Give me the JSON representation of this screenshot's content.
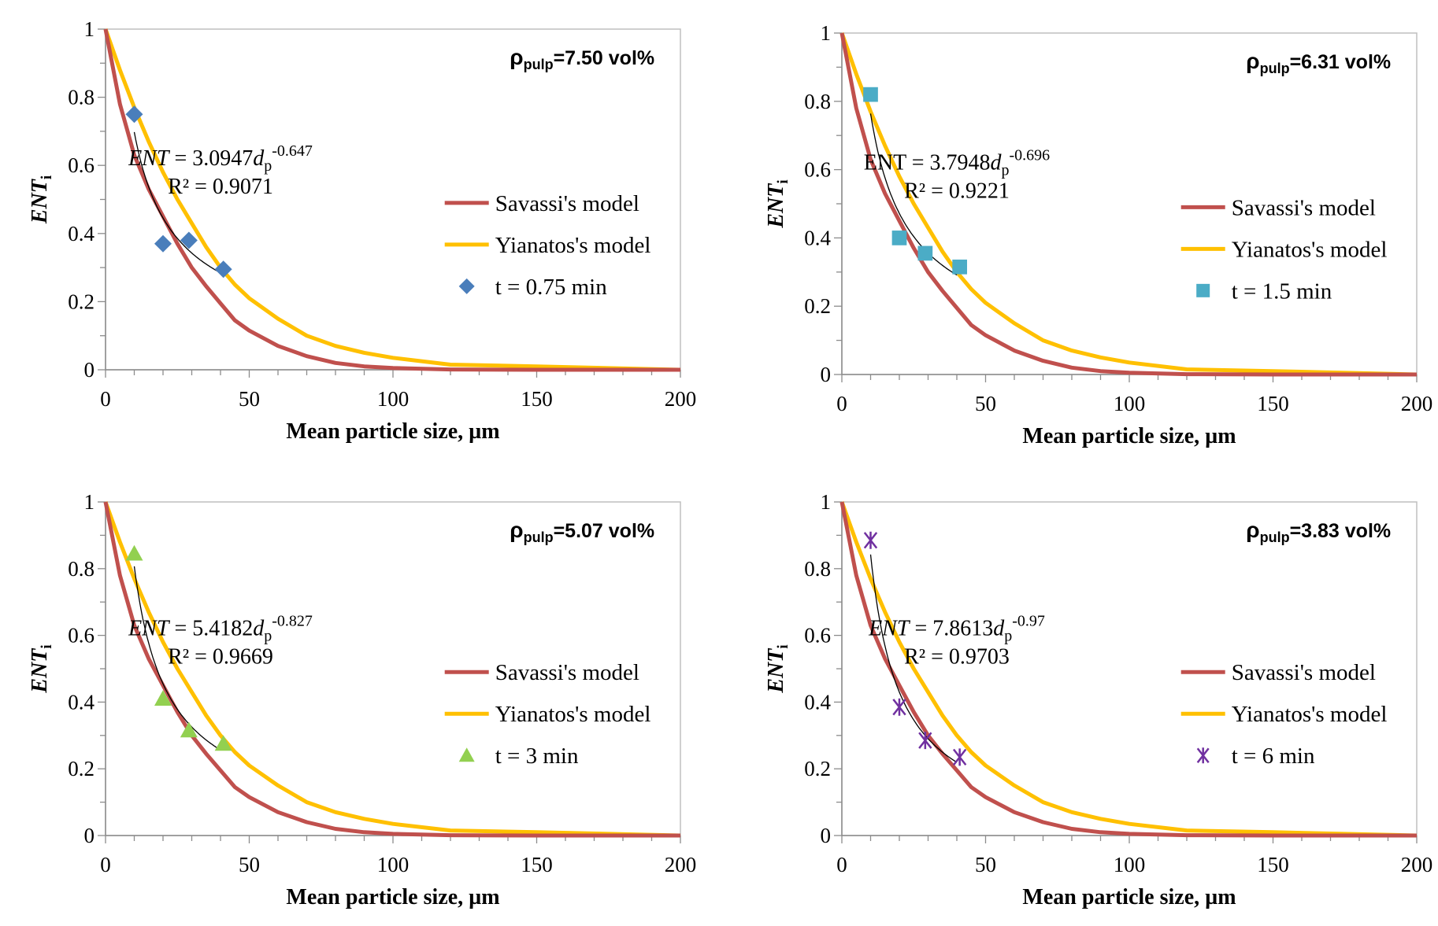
{
  "chart_data": [
    {
      "type": "scatter",
      "annotation": {
        "symbol": "ρ",
        "sub": "pulp",
        "text": "=7.50 vol%"
      },
      "xlabel": "Mean particle size, µm",
      "ylabel": {
        "main": "ENT",
        "sub": "i"
      },
      "xlim": [
        0,
        200
      ],
      "ylim": [
        0,
        1
      ],
      "xticks": [
        "0",
        "50",
        "100",
        "150",
        "200"
      ],
      "yticks": [
        "0",
        "0.2",
        "0.4",
        "0.6",
        "0.8",
        "1"
      ],
      "equation": {
        "lhs": "ENT",
        "mid": " = 3.0947",
        "var": "d",
        "sub": "p",
        "exp": "-0.647",
        "r2": "R² = 0.9071",
        "a": 3.0947,
        "b": -0.647
      },
      "legend": [
        "Savassi's model",
        "Yianatos's model",
        "t = 0.75 min"
      ],
      "marker": "diamond",
      "marker_color": "#4a7ebb",
      "points": {
        "x": [
          10,
          20,
          29,
          41
        ],
        "y": [
          0.75,
          0.37,
          0.38,
          0.295
        ]
      }
    },
    {
      "type": "scatter",
      "annotation": {
        "symbol": "ρ",
        "sub": "pulp",
        "text": "=6.31 vol%"
      },
      "xlabel": "Mean particle size, µm",
      "ylabel": {
        "main": "ENT",
        "sub": "i"
      },
      "xlim": [
        0,
        200
      ],
      "ylim": [
        0,
        1
      ],
      "xticks": [
        "0",
        "50",
        "100",
        "150",
        "200"
      ],
      "yticks": [
        "0",
        "0.2",
        "0.4",
        "0.6",
        "0.8",
        "1"
      ],
      "equation": {
        "lhs": "ENT",
        "mid": " = 3.7948",
        "var": "d",
        "sub": "p",
        "exp": "-0.696",
        "r2": "R² = 0.9221",
        "a": 3.7948,
        "b": -0.696,
        "upright": true
      },
      "legend": [
        "Savassi's model",
        "Yianatos's model",
        "t = 1.5 min"
      ],
      "marker": "square",
      "marker_color": "#4bacc6",
      "points": {
        "x": [
          10,
          20,
          29,
          41
        ],
        "y": [
          0.82,
          0.4,
          0.355,
          0.315
        ]
      }
    },
    {
      "type": "scatter",
      "annotation": {
        "symbol": "ρ",
        "sub": "pulp",
        "text": "=5.07 vol%"
      },
      "xlabel": "Mean particle size, µm",
      "ylabel": {
        "main": "ENT",
        "sub": "i"
      },
      "xlim": [
        0,
        200
      ],
      "ylim": [
        0,
        1
      ],
      "xticks": [
        "0",
        "50",
        "100",
        "150",
        "200"
      ],
      "yticks": [
        "0",
        "0.2",
        "0.4",
        "0.6",
        "0.8",
        "1"
      ],
      "equation": {
        "lhs": "ENT",
        "mid": " = 5.4182",
        "var": "d",
        "sub": "p",
        "exp": "-0.827",
        "r2": "R² = 0.9669",
        "a": 5.4182,
        "b": -0.827
      },
      "legend": [
        "Savassi's model",
        "Yianatos's model",
        "t = 3 min"
      ],
      "marker": "triangle",
      "marker_color": "#92d050",
      "points": {
        "x": [
          10,
          20,
          29,
          41
        ],
        "y": [
          0.845,
          0.41,
          0.315,
          0.275
        ]
      }
    },
    {
      "type": "scatter",
      "annotation": {
        "symbol": "ρ",
        "sub": "pulp",
        "text": "=3.83 vol%"
      },
      "xlabel": "Mean particle size, µm",
      "ylabel": {
        "main": "ENT",
        "sub": "i"
      },
      "xlim": [
        0,
        200
      ],
      "ylim": [
        0,
        1
      ],
      "xticks": [
        "0",
        "50",
        "100",
        "150",
        "200"
      ],
      "yticks": [
        "0",
        "0.2",
        "0.4",
        "0.6",
        "0.8",
        "1"
      ],
      "equation": {
        "lhs": "ENT",
        "mid": " = 7.8613",
        "var": "d",
        "sub": "p",
        "exp": "-0.97",
        "r2": "R² = 0.9703",
        "a": 7.8613,
        "b": -0.97
      },
      "legend": [
        "Savassi's model",
        "Yianatos's model",
        "t = 6 min"
      ],
      "marker": "asterisk",
      "marker_color": "#7030a0",
      "points": {
        "x": [
          10,
          20,
          29,
          41
        ],
        "y": [
          0.885,
          0.385,
          0.285,
          0.235
        ]
      }
    }
  ],
  "models": {
    "savassi": {
      "color": "#c0504d",
      "x": [
        0,
        5,
        10,
        15,
        20,
        25,
        30,
        35,
        40,
        45,
        50,
        60,
        70,
        80,
        90,
        100,
        120,
        150,
        200
      ],
      "y": [
        1,
        0.78,
        0.63,
        0.53,
        0.45,
        0.37,
        0.3,
        0.245,
        0.195,
        0.145,
        0.115,
        0.07,
        0.04,
        0.02,
        0.01,
        0.005,
        0.001,
        0,
        0
      ]
    },
    "yianatos": {
      "color": "#ffc000",
      "x": [
        0,
        5,
        10,
        15,
        20,
        25,
        30,
        35,
        40,
        45,
        50,
        60,
        70,
        80,
        90,
        100,
        120,
        150,
        200
      ],
      "y": [
        1,
        0.88,
        0.77,
        0.67,
        0.58,
        0.5,
        0.43,
        0.36,
        0.3,
        0.25,
        0.21,
        0.15,
        0.1,
        0.07,
        0.05,
        0.035,
        0.015,
        0.01,
        0
      ]
    }
  }
}
